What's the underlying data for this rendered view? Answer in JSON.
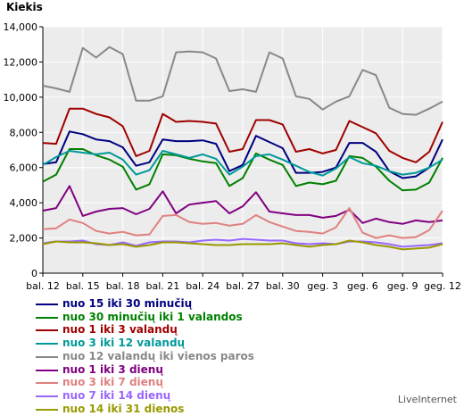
{
  "chart_data": {
    "type": "line",
    "title": "Kiekis",
    "ylim": [
      0,
      14000
    ],
    "yticks": [
      "0",
      "2,000",
      "4,000",
      "6,000",
      "8,000",
      "10,000",
      "12,000",
      "14,000"
    ],
    "ytick_values": [
      0,
      2000,
      4000,
      6000,
      8000,
      10000,
      12000,
      14000
    ],
    "x_labels": [
      "bal. 12",
      "bal. 15",
      "bal. 18",
      "bal. 21",
      "bal. 24",
      "bal. 27",
      "bal. 30",
      "geg. 3",
      "geg. 6",
      "geg. 9",
      "geg. 12"
    ],
    "x_label_index": [
      0,
      3,
      6,
      9,
      12,
      15,
      18,
      21,
      24,
      27,
      30
    ],
    "grid": true,
    "legend_position": "bottom-left",
    "series": [
      {
        "name": "nuo 15 iki 30 minučių",
        "color": "#000080",
        "values": [
          6200,
          6300,
          8050,
          7900,
          7600,
          7500,
          7150,
          6100,
          6300,
          7600,
          7500,
          7500,
          7550,
          7350,
          5800,
          6150,
          7800,
          7450,
          7100,
          5700,
          5700,
          5750,
          6000,
          7400,
          7400,
          6900,
          5800,
          5400,
          5500,
          6000,
          7600
        ]
      },
      {
        "name": "nuo 30 minučių iki 1 valandos",
        "color": "#008000",
        "values": [
          5200,
          5600,
          7050,
          7050,
          6700,
          6450,
          6050,
          4750,
          5050,
          6750,
          6700,
          6500,
          6350,
          6250,
          4950,
          5400,
          6800,
          6450,
          6150,
          4950,
          5150,
          5050,
          5250,
          6650,
          6550,
          6050,
          5250,
          4700,
          4750,
          5150,
          6550
        ]
      },
      {
        "name": "nuo 1 iki 3 valandų",
        "color": "#a00000",
        "values": [
          7400,
          7350,
          9350,
          9350,
          9050,
          8850,
          8350,
          6650,
          6950,
          9050,
          8600,
          8650,
          8600,
          8500,
          6900,
          7050,
          8700,
          8700,
          8450,
          6900,
          7050,
          6800,
          7000,
          8650,
          8300,
          7950,
          6950,
          6550,
          6300,
          6900,
          8600
        ]
      },
      {
        "name": "nuo 3 iki 12 valandų",
        "color": "#009999",
        "values": [
          6150,
          6600,
          6950,
          6850,
          6750,
          6850,
          6450,
          5600,
          5850,
          6950,
          6750,
          6550,
          6750,
          6500,
          5600,
          6050,
          6650,
          6750,
          6450,
          6100,
          5750,
          5550,
          5950,
          6600,
          6250,
          6100,
          5800,
          5600,
          5700,
          6000,
          6450
        ]
      },
      {
        "name": "nuo 12 valandų iki vienos paros",
        "color": "#888888",
        "values": [
          10650,
          10500,
          10300,
          12800,
          12250,
          12850,
          12450,
          9800,
          9800,
          10050,
          12550,
          12600,
          12550,
          12200,
          10350,
          10450,
          10300,
          12550,
          12200,
          10050,
          9900,
          9300,
          9750,
          10050,
          11550,
          11250,
          9400,
          9050,
          9000,
          9350,
          9750
        ]
      },
      {
        "name": "nuo 1 iki 3 dienų",
        "color": "#800080",
        "values": [
          3550,
          3700,
          4950,
          3250,
          3500,
          3650,
          3700,
          3350,
          3650,
          4650,
          3400,
          3900,
          4000,
          4100,
          3400,
          3800,
          4600,
          3500,
          3400,
          3300,
          3300,
          3150,
          3250,
          3600,
          2850,
          3100,
          2900,
          2800,
          3000,
          2900,
          3000
        ]
      },
      {
        "name": "nuo 3 iki 7 dienų",
        "color": "#e08080",
        "values": [
          2500,
          2550,
          3050,
          2850,
          2400,
          2250,
          2350,
          2150,
          2200,
          3250,
          3300,
          2900,
          2800,
          2850,
          2700,
          2800,
          3300,
          2900,
          2650,
          2400,
          2350,
          2250,
          2600,
          3700,
          2300,
          2000,
          2150,
          2000,
          2050,
          2450,
          3550
        ]
      },
      {
        "name": "nuo 7 iki 14 dienų",
        "color": "#9966ff",
        "values": [
          1700,
          1800,
          1800,
          1850,
          1650,
          1600,
          1750,
          1550,
          1750,
          1800,
          1800,
          1750,
          1850,
          1900,
          1850,
          1950,
          1900,
          1850,
          1850,
          1700,
          1650,
          1700,
          1650,
          1800,
          1800,
          1750,
          1650,
          1500,
          1550,
          1600,
          1700
        ]
      },
      {
        "name": "nuo 14 iki 31 dienos",
        "color": "#999900",
        "values": [
          1650,
          1800,
          1750,
          1750,
          1700,
          1600,
          1650,
          1500,
          1600,
          1750,
          1750,
          1700,
          1650,
          1600,
          1600,
          1650,
          1650,
          1650,
          1700,
          1600,
          1500,
          1600,
          1650,
          1850,
          1750,
          1600,
          1500,
          1350,
          1400,
          1450,
          1650
        ]
      }
    ]
  },
  "footer": {
    "credit": "LiveInternet"
  }
}
